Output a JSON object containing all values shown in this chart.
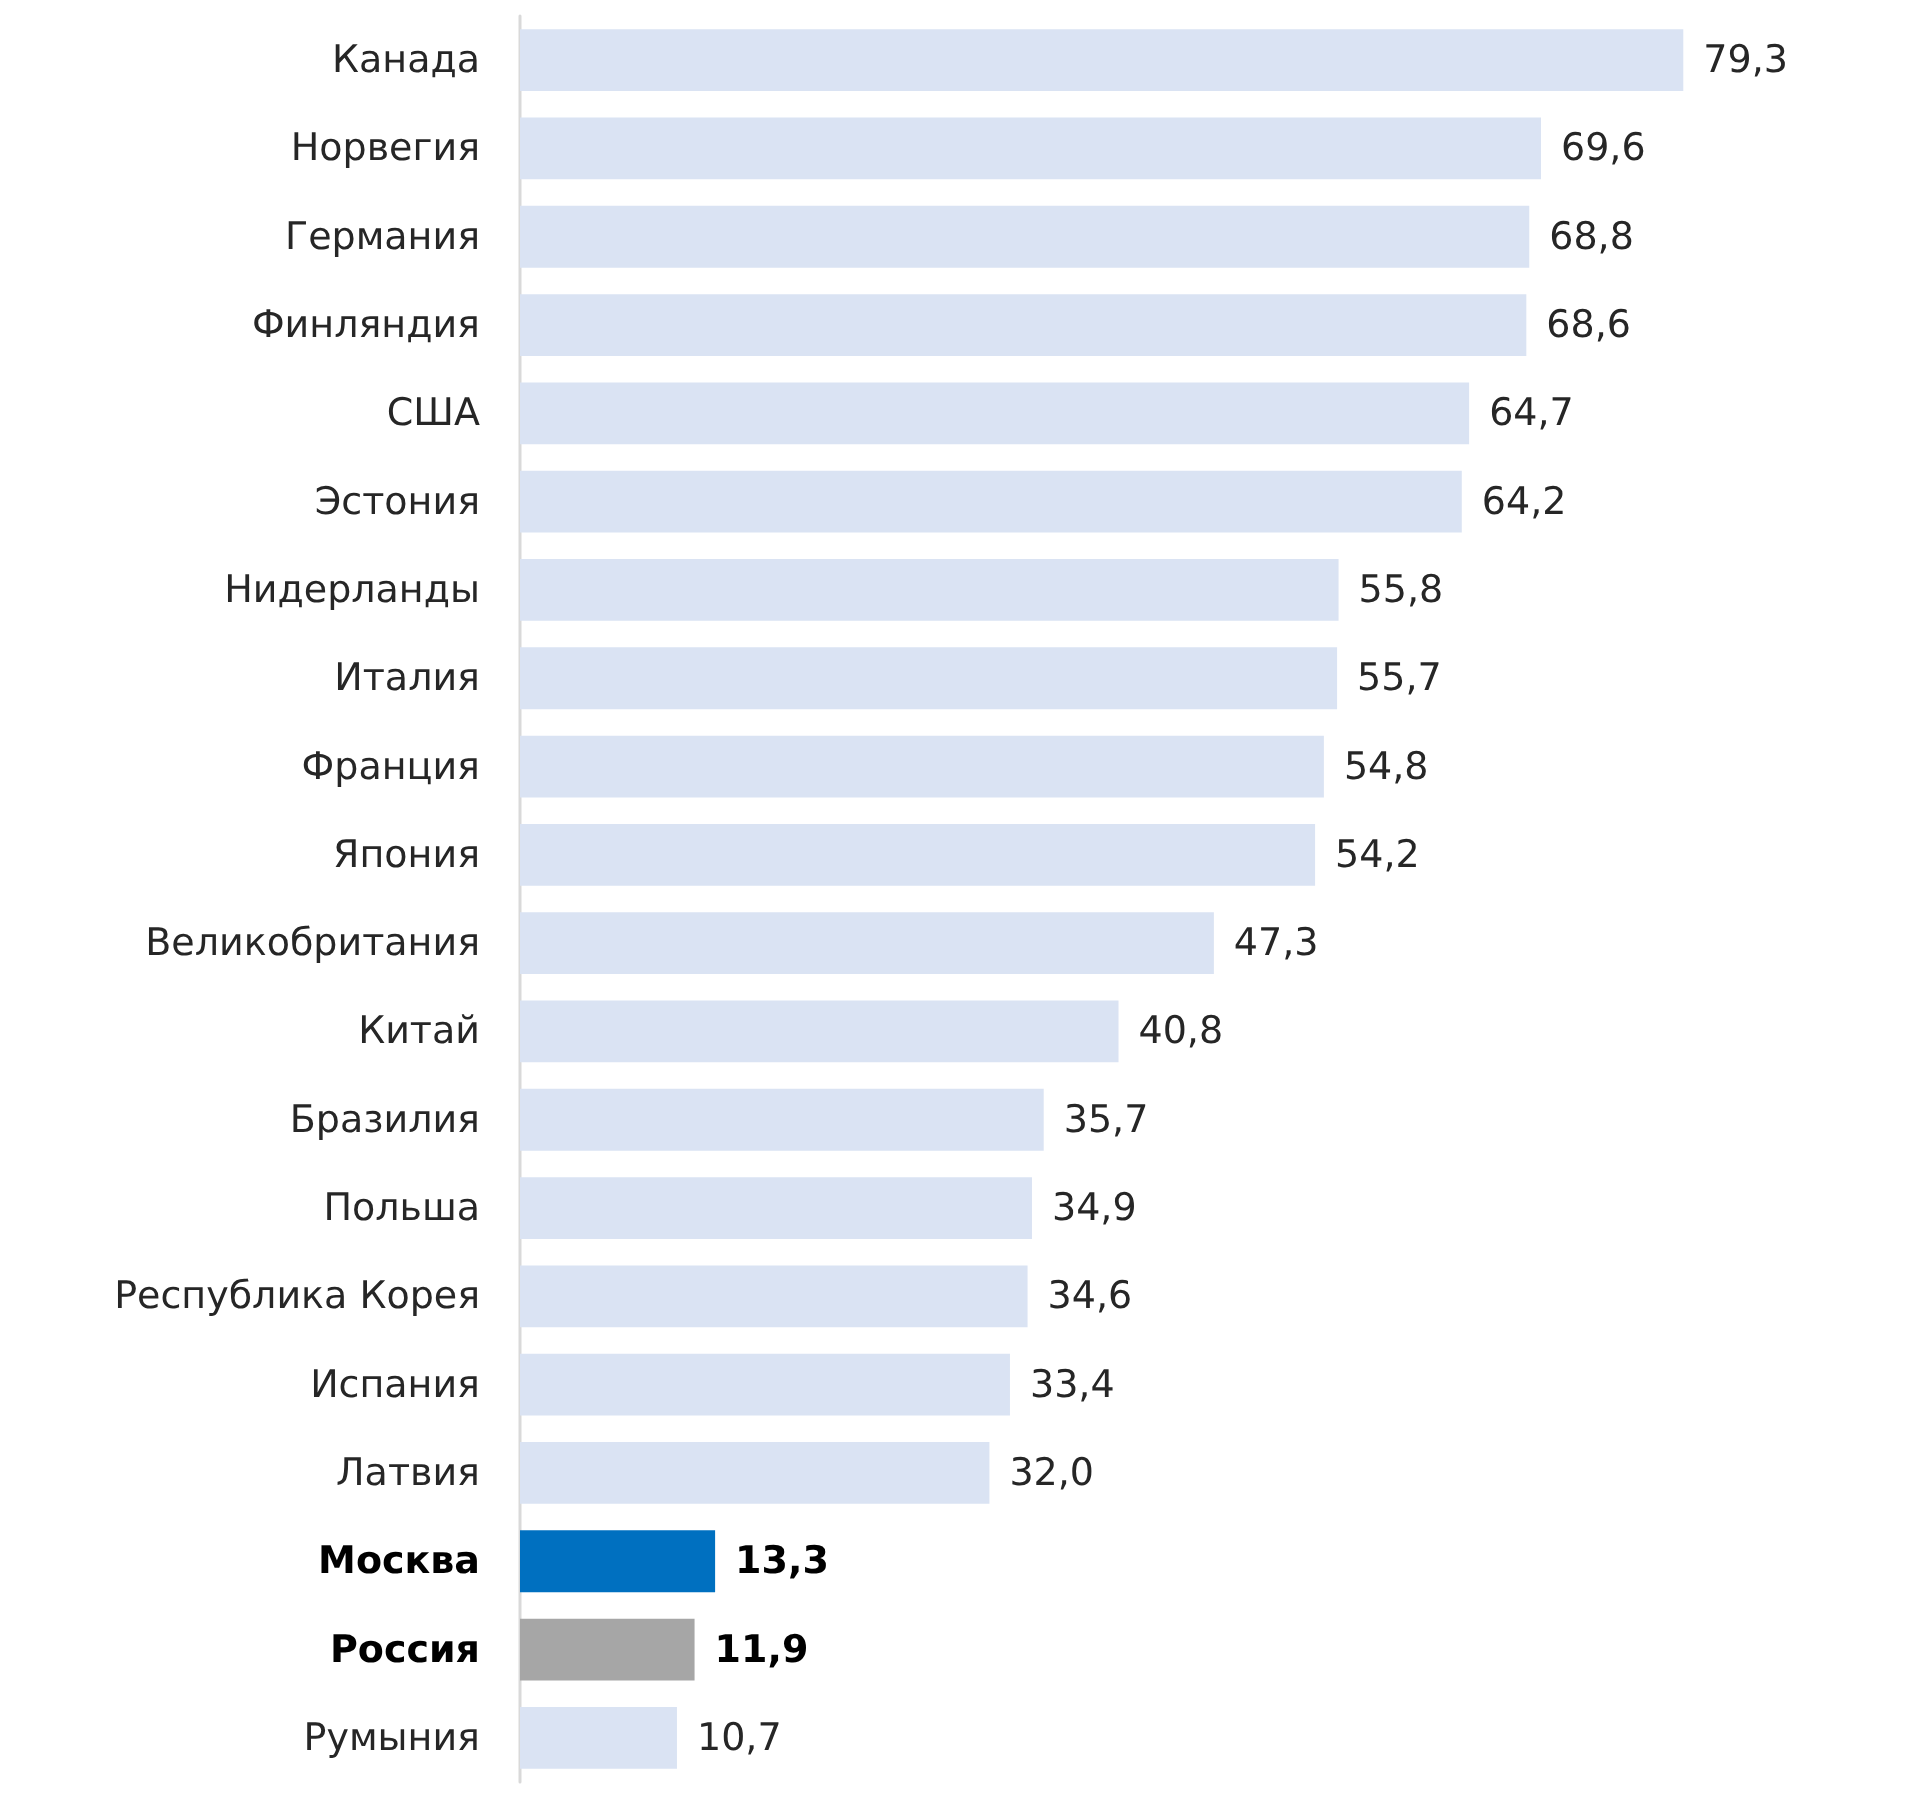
{
  "chart_data": {
    "type": "bar",
    "categories": [
      "Канада",
      "Норвегия",
      "Германия",
      "Финляндия",
      "США",
      "Эстония",
      "Нидерланды",
      "Италия",
      "Франция",
      "Япония",
      "Великобритания",
      "Китай",
      "Бразилия",
      "Польша",
      "Республика Корея",
      "Испания",
      "Латвия",
      "Москва",
      "Россия",
      "Румыния"
    ],
    "values": [
      79.3,
      69.6,
      68.8,
      68.6,
      64.7,
      64.2,
      55.8,
      55.7,
      54.8,
      54.2,
      47.3,
      40.8,
      35.7,
      34.9,
      34.6,
      33.4,
      32.0,
      13.3,
      11.9,
      10.7
    ],
    "value_labels": [
      "79,3",
      "69,6",
      "68,8",
      "68,6",
      "64,7",
      "64,2",
      "55,8",
      "55,7",
      "54,8",
      "54,2",
      "47,3",
      "40,8",
      "35,7",
      "34,9",
      "34,6",
      "33,4",
      "32,0",
      "13,3",
      "11,9",
      "10,7"
    ],
    "colors": [
      "#dae3f3",
      "#dae3f3",
      "#dae3f3",
      "#dae3f3",
      "#dae3f3",
      "#dae3f3",
      "#dae3f3",
      "#dae3f3",
      "#dae3f3",
      "#dae3f3",
      "#dae3f3",
      "#dae3f3",
      "#dae3f3",
      "#dae3f3",
      "#dae3f3",
      "#dae3f3",
      "#dae3f3",
      "#0070c0",
      "#a6a6a6",
      "#dae3f3"
    ],
    "orientation": "horizontal"
  }
}
